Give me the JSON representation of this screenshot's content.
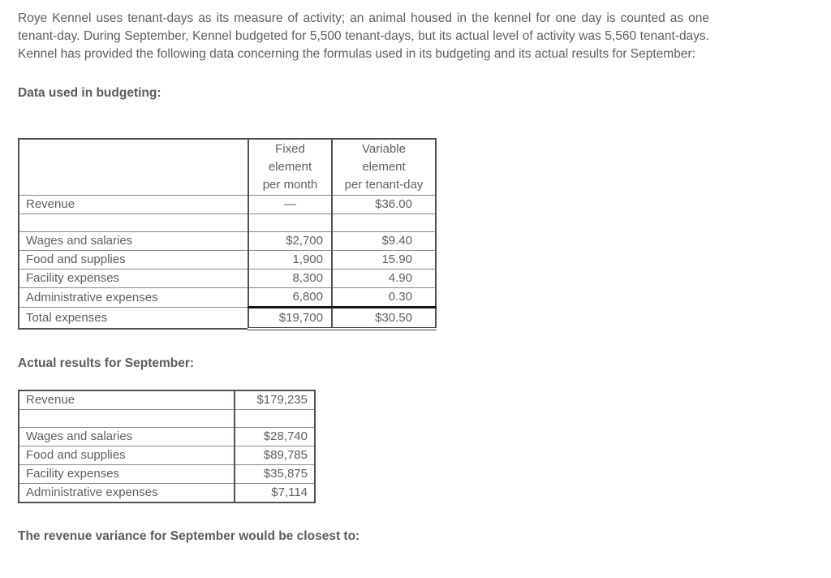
{
  "document": {
    "intro_paragraph": "Roye Kennel uses tenant-days as its measure of activity; an animal housed in the kennel for one day is counted as one tenant-day. During September, Kennel budgeted for 5,500 tenant-days, but its actual level of activity was 5,560 tenant-days. Kennel has provided the following data concerning the formulas used in its budgeting and its actual results for September:",
    "budget_section_heading": "Data used in budgeting:",
    "actual_section_heading": "Actual results for September:",
    "question_text": "The revenue variance for September would be closest to:"
  },
  "budget_table": {
    "headers": {
      "label": "",
      "fixed": "Fixed\nelement\nper month",
      "variable": "Variable\nelement\nper tenant-day"
    },
    "rows": [
      {
        "label": "Revenue",
        "fixed": "—",
        "variable": "$36.00"
      },
      {
        "label": "",
        "fixed": "",
        "variable": ""
      },
      {
        "label": "Wages and salaries",
        "fixed": "$2,700",
        "variable": "$9.40"
      },
      {
        "label": "Food and supplies",
        "fixed": "1,900",
        "variable": "15.90"
      },
      {
        "label": "Facility expenses",
        "fixed": "8,300",
        "variable": "4.90"
      },
      {
        "label": "Administrative expenses",
        "fixed": "6,800",
        "variable": "0.30"
      }
    ],
    "total_row": {
      "label": "Total expenses",
      "fixed": "$19,700",
      "variable": "$30.50"
    }
  },
  "actual_table": {
    "rows": [
      {
        "label": "Revenue",
        "value": "$179,235"
      },
      {
        "label": "",
        "value": ""
      },
      {
        "label": "Wages and salaries",
        "value": "$28,740"
      },
      {
        "label": "Food and supplies",
        "value": "$89,785"
      },
      {
        "label": "Facility expenses",
        "value": "$35,875"
      },
      {
        "label": "Administrative expenses",
        "value": "$7,114"
      }
    ]
  },
  "colors": {
    "text": "#5c6064",
    "border_light": "#85898d",
    "border_dark": "#4e5256",
    "total_rule": "#141518"
  }
}
